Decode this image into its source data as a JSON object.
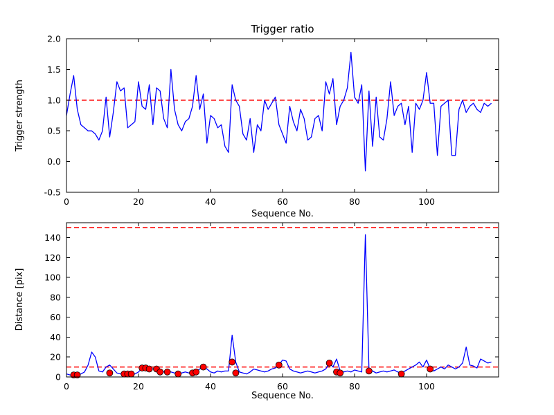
{
  "figure": {
    "background": "#ffffff"
  },
  "chart_data": [
    {
      "type": "line",
      "title": "Trigger ratio",
      "xlabel": "Sequence No.",
      "ylabel": "Trigger strength",
      "xlim": [
        0,
        120
      ],
      "ylim": [
        -0.5,
        2.0
      ],
      "xticks": [
        0,
        20,
        40,
        60,
        80,
        100
      ],
      "xticklabels": [
        "0",
        "20",
        "40",
        "60",
        "80",
        "100"
      ],
      "yticks": [
        -0.5,
        0.0,
        0.5,
        1.0,
        1.5,
        2.0
      ],
      "yticklabels": [
        "-0.5",
        "0.0",
        "0.5",
        "1.0",
        "1.5",
        "2.0"
      ],
      "grid": false,
      "legend": "none",
      "threshold_color": "#ff0000",
      "threshold_lines": [
        1.0
      ],
      "series": [
        {
          "name": "trigger-strength",
          "color": "#0000ff",
          "values": [
            0.75,
            1.1,
            1.4,
            0.85,
            0.6,
            0.55,
            0.5,
            0.5,
            0.45,
            0.35,
            0.5,
            1.05,
            0.4,
            0.8,
            1.3,
            1.15,
            1.2,
            0.55,
            0.6,
            0.65,
            1.3,
            0.9,
            0.85,
            1.25,
            0.6,
            1.2,
            1.15,
            0.7,
            0.55,
            1.5,
            0.85,
            0.6,
            0.5,
            0.65,
            0.7,
            0.9,
            1.4,
            0.85,
            1.1,
            0.3,
            0.75,
            0.7,
            0.55,
            0.6,
            0.25,
            0.15,
            1.25,
            1.0,
            0.9,
            0.45,
            0.35,
            0.7,
            0.15,
            0.6,
            0.5,
            1.0,
            0.85,
            0.95,
            1.05,
            0.6,
            0.45,
            0.3,
            0.9,
            0.65,
            0.5,
            0.85,
            0.7,
            0.35,
            0.4,
            0.7,
            0.75,
            0.5,
            1.3,
            1.1,
            1.35,
            0.6,
            0.9,
            1.0,
            1.2,
            1.78,
            1.05,
            0.95,
            1.25,
            -0.15,
            1.15,
            0.25,
            1.05,
            0.4,
            0.35,
            0.7,
            1.3,
            0.75,
            0.9,
            0.95,
            0.6,
            0.9,
            0.15,
            0.95,
            0.85,
            1.0,
            1.45,
            0.95,
            0.95,
            0.1,
            0.9,
            0.95,
            1.0,
            0.1,
            0.1,
            0.85,
            1.0,
            0.8,
            0.9,
            0.95,
            0.85,
            0.8,
            0.95,
            0.9,
            0.95
          ]
        }
      ]
    },
    {
      "type": "line",
      "title": "",
      "xlabel": "Sequence No.",
      "ylabel": "Distance [pix]",
      "xlim": [
        0,
        120
      ],
      "ylim": [
        0,
        155
      ],
      "xticks": [
        0,
        20,
        40,
        60,
        80,
        100
      ],
      "xticklabels": [
        "0",
        "20",
        "40",
        "60",
        "80",
        "100"
      ],
      "yticks": [
        0,
        20,
        40,
        60,
        80,
        100,
        120,
        140
      ],
      "yticklabels": [
        "0",
        "20",
        "40",
        "60",
        "80",
        "100",
        "120",
        "140"
      ],
      "grid": false,
      "legend": "none",
      "threshold_color": "#ff0000",
      "threshold_lines": [
        150,
        10
      ],
      "series": [
        {
          "name": "distance",
          "color": "#0000ff",
          "values": [
            3,
            2,
            2,
            2,
            3,
            5,
            12,
            25,
            20,
            6,
            5,
            10,
            12,
            8,
            4,
            3,
            4,
            3,
            3,
            3,
            5,
            9,
            9,
            9,
            8,
            9,
            8,
            5,
            6,
            5,
            4,
            3,
            4,
            5,
            4,
            5,
            5,
            8,
            10,
            8,
            5,
            4,
            6,
            5,
            6,
            6,
            42,
            15,
            5,
            4,
            3,
            5,
            8,
            7,
            6,
            5,
            6,
            8,
            9,
            12,
            17,
            16,
            8,
            6,
            5,
            4,
            5,
            6,
            5,
            4,
            5,
            6,
            8,
            14,
            10,
            18,
            6,
            5,
            6,
            5,
            7,
            6,
            5,
            143,
            8,
            6,
            4,
            5,
            6,
            5,
            6,
            7,
            5,
            4,
            6,
            8,
            10,
            12,
            15,
            10,
            17,
            8,
            6,
            8,
            10,
            8,
            12,
            10,
            8,
            10,
            14,
            30,
            12,
            11,
            9,
            18,
            16,
            14,
            15
          ]
        }
      ],
      "scatter": {
        "name": "detections",
        "color": "#ff0000",
        "points": [
          [
            2,
            2
          ],
          [
            3,
            2
          ],
          [
            12,
            4
          ],
          [
            16,
            3
          ],
          [
            17,
            3
          ],
          [
            18,
            3
          ],
          [
            21,
            9
          ],
          [
            22,
            9
          ],
          [
            23,
            8
          ],
          [
            25,
            8
          ],
          [
            26,
            5
          ],
          [
            28,
            5
          ],
          [
            31,
            3
          ],
          [
            35,
            4
          ],
          [
            36,
            5
          ],
          [
            38,
            10
          ],
          [
            46,
            15
          ],
          [
            47,
            4
          ],
          [
            59,
            12
          ],
          [
            73,
            14
          ],
          [
            75,
            5
          ],
          [
            76,
            4
          ],
          [
            84,
            6
          ],
          [
            93,
            3
          ],
          [
            101,
            8
          ]
        ]
      }
    }
  ]
}
